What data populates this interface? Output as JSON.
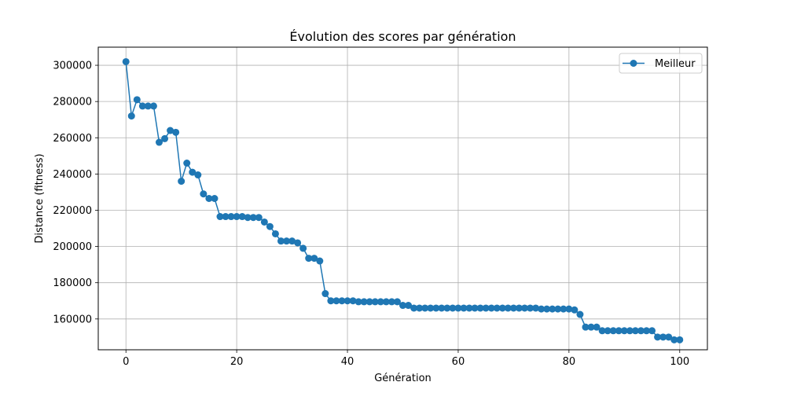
{
  "colors": {
    "series": "#1f77b4",
    "grid": "#b0b0b0",
    "axis": "#000000",
    "legend_border": "#cccccc"
  },
  "chart_data": {
    "type": "line",
    "title": "Évolution des scores par génération",
    "xlabel": "Génération",
    "ylabel": "Distance (fitness)",
    "xlim": [
      -5,
      105
    ],
    "ylim": [
      143000,
      310000
    ],
    "xticks": [
      0,
      20,
      40,
      60,
      80,
      100
    ],
    "yticks": [
      160000,
      180000,
      200000,
      220000,
      240000,
      260000,
      280000,
      300000
    ],
    "grid": true,
    "legend_position": "top-right",
    "series": [
      {
        "name": "Meilleur",
        "marker": "circle",
        "x": [
          0,
          1,
          2,
          3,
          4,
          5,
          6,
          7,
          8,
          9,
          10,
          11,
          12,
          13,
          14,
          15,
          16,
          17,
          18,
          19,
          20,
          21,
          22,
          23,
          24,
          25,
          26,
          27,
          28,
          29,
          30,
          31,
          32,
          33,
          34,
          35,
          36,
          37,
          38,
          39,
          40,
          41,
          42,
          43,
          44,
          45,
          46,
          47,
          48,
          49,
          50,
          51,
          52,
          53,
          54,
          55,
          56,
          57,
          58,
          59,
          60,
          61,
          62,
          63,
          64,
          65,
          66,
          67,
          68,
          69,
          70,
          71,
          72,
          73,
          74,
          75,
          76,
          77,
          78,
          79,
          80,
          81,
          82,
          83,
          84,
          85,
          86,
          87,
          88,
          89,
          90,
          91,
          92,
          93,
          94,
          95,
          96,
          97,
          98,
          99,
          100
        ],
        "y": [
          302000,
          272000,
          281000,
          277500,
          277500,
          277500,
          257500,
          259500,
          264000,
          263000,
          236000,
          246000,
          241000,
          239500,
          229000,
          226500,
          226500,
          216500,
          216500,
          216500,
          216500,
          216500,
          216000,
          216000,
          216000,
          213500,
          211000,
          207000,
          203000,
          203000,
          203000,
          202000,
          199000,
          193500,
          193500,
          192000,
          174000,
          170000,
          170000,
          170000,
          170000,
          170000,
          169500,
          169500,
          169500,
          169500,
          169500,
          169500,
          169500,
          169500,
          167500,
          167500,
          166000,
          166000,
          166000,
          166000,
          166000,
          166000,
          166000,
          166000,
          166000,
          166000,
          166000,
          166000,
          166000,
          166000,
          166000,
          166000,
          166000,
          166000,
          166000,
          166000,
          166000,
          166000,
          166000,
          165500,
          165500,
          165500,
          165500,
          165500,
          165500,
          165000,
          162500,
          155500,
          155500,
          155500,
          153500,
          153500,
          153500,
          153500,
          153500,
          153500,
          153500,
          153500,
          153500,
          153500,
          150000,
          150000,
          150000,
          148500,
          148500
        ]
      }
    ]
  }
}
